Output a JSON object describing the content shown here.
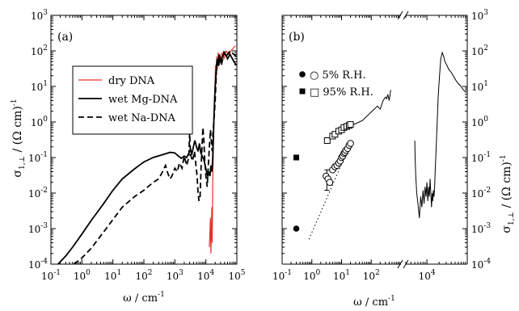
{
  "chart_data": [
    {
      "type": "line",
      "panel_label": "(a)",
      "xlabel": "ω / cm",
      "xlabel_sup": "-1",
      "ylabel": "σ",
      "ylabel_sub": "1,⊥",
      "ylabel_unit": " / (Ω cm)",
      "ylabel_sup": "-1",
      "xscale": "log",
      "yscale": "log",
      "xlim": [
        0.1,
        100000
      ],
      "ylim": [
        0.0001,
        1000
      ],
      "x_ticks": [
        {
          "base": "10",
          "exp": "-1",
          "v": 0.1
        },
        {
          "base": "10",
          "exp": "0",
          "v": 1
        },
        {
          "base": "10",
          "exp": "1",
          "v": 10
        },
        {
          "base": "10",
          "exp": "2",
          "v": 100
        },
        {
          "base": "10",
          "exp": "3",
          "v": 1000
        },
        {
          "base": "10",
          "exp": "4",
          "v": 10000
        },
        {
          "base": "10",
          "exp": "5",
          "v": 100000
        }
      ],
      "y_ticks": [
        {
          "base": "10",
          "exp": "-4",
          "v": 0.0001
        },
        {
          "base": "10",
          "exp": "-3",
          "v": 0.001
        },
        {
          "base": "10",
          "exp": "-2",
          "v": 0.01
        },
        {
          "base": "10",
          "exp": "-1",
          "v": 0.1
        },
        {
          "base": "10",
          "exp": "0",
          "v": 1
        },
        {
          "base": "10",
          "exp": "1",
          "v": 10
        },
        {
          "base": "10",
          "exp": "2",
          "v": 100
        },
        {
          "base": "10",
          "exp": "3",
          "v": 1000
        }
      ],
      "legend_position": "upper-left",
      "series": [
        {
          "name": "dry DNA",
          "color": "#e8322b",
          "style": "solid",
          "points": [
            [
              13000,
              0.0003
            ],
            [
              14000,
              0.002
            ],
            [
              14500,
              0.0002
            ],
            [
              15000,
              0.0008
            ],
            [
              15500,
              0.004
            ],
            [
              16000,
              0.0004
            ],
            [
              16800,
              0.03
            ],
            [
              17500,
              0.2
            ],
            [
              18500,
              2
            ],
            [
              19500,
              10
            ],
            [
              20500,
              40
            ],
            [
              21500,
              15
            ],
            [
              22500,
              70
            ],
            [
              23500,
              30
            ],
            [
              25000,
              90
            ],
            [
              26500,
              40
            ],
            [
              28000,
              80
            ],
            [
              30000,
              50
            ],
            [
              33000,
              90
            ],
            [
              38000,
              60
            ],
            [
              45000,
              100
            ],
            [
              55000,
              80
            ],
            [
              70000,
              110
            ],
            [
              90000,
              140
            ]
          ]
        },
        {
          "name": "wet Mg-DNA",
          "color": "#000000",
          "style": "solid",
          "points": [
            [
              0.17,
              0.0001
            ],
            [
              0.3,
              0.00017
            ],
            [
              0.5,
              0.0003
            ],
            [
              1,
              0.0007
            ],
            [
              2,
              0.0017
            ],
            [
              5,
              0.005
            ],
            [
              10,
              0.012
            ],
            [
              20,
              0.025
            ],
            [
              50,
              0.048
            ],
            [
              70,
              0.06
            ],
            [
              100,
              0.075
            ],
            [
              200,
              0.1
            ],
            [
              400,
              0.12
            ],
            [
              700,
              0.14
            ],
            [
              1000,
              0.135
            ],
            [
              1300,
              0.11
            ],
            [
              1600,
              0.095
            ],
            [
              2000,
              0.11
            ],
            [
              2400,
              0.1
            ],
            [
              2800,
              0.13
            ],
            [
              3200,
              0.17
            ],
            [
              3500,
              0.12
            ],
            [
              3900,
              0.19
            ],
            [
              4400,
              0.3
            ],
            [
              5000,
              0.2
            ],
            [
              5600,
              0.15
            ],
            [
              6200,
              0.25
            ],
            [
              6800,
              0.14
            ],
            [
              7600,
              0.11
            ],
            [
              8500,
              0.09
            ],
            [
              9500,
              0.06
            ],
            [
              10500,
              0.04
            ],
            [
              11500,
              0.03
            ],
            [
              12500,
              0.04
            ],
            [
              13500,
              0.03
            ],
            [
              14500,
              0.06
            ],
            [
              15500,
              0.04
            ],
            [
              16500,
              0.08
            ],
            [
              17500,
              0.4
            ],
            [
              18500,
              2
            ],
            [
              19500,
              6
            ],
            [
              21000,
              20
            ],
            [
              23000,
              60
            ],
            [
              25000,
              40
            ],
            [
              27000,
              80
            ],
            [
              30000,
              50
            ],
            [
              35000,
              70
            ],
            [
              40000,
              90
            ],
            [
              50000,
              60
            ],
            [
              60000,
              80
            ],
            [
              80000,
              50
            ],
            [
              95000,
              40
            ]
          ]
        },
        {
          "name": "wet Na-DNA",
          "color": "#000000",
          "style": "dashed",
          "points": [
            [
              0.55,
              0.0001
            ],
            [
              1,
              0.00015
            ],
            [
              2,
              0.00028
            ],
            [
              5,
              0.0008
            ],
            [
              10,
              0.0018
            ],
            [
              20,
              0.004
            ],
            [
              50,
              0.008
            ],
            [
              100,
              0.012
            ],
            [
              200,
              0.02
            ],
            [
              300,
              0.025
            ],
            [
              400,
              0.04
            ],
            [
              500,
              0.06
            ],
            [
              600,
              0.035
            ],
            [
              700,
              0.025
            ],
            [
              800,
              0.03
            ],
            [
              1000,
              0.05
            ],
            [
              1200,
              0.04
            ],
            [
              1400,
              0.07
            ],
            [
              1700,
              0.05
            ],
            [
              2000,
              0.11
            ],
            [
              2400,
              0.06
            ],
            [
              2800,
              0.1
            ],
            [
              3000,
              0.5
            ],
            [
              3200,
              0.12
            ],
            [
              3700,
              0.08
            ],
            [
              4300,
              0.15
            ],
            [
              4800,
              0.06
            ],
            [
              5200,
              0.03
            ],
            [
              5600,
              0.01
            ],
            [
              6000,
              0.006
            ],
            [
              6500,
              0.008
            ],
            [
              7000,
              0.05
            ],
            [
              7500,
              0.2
            ],
            [
              8000,
              0.7
            ],
            [
              8600,
              0.3
            ],
            [
              9200,
              0.08
            ],
            [
              10000,
              0.03
            ],
            [
              11000,
              0.015
            ],
            [
              12000,
              0.06
            ],
            [
              13000,
              0.2
            ],
            [
              14000,
              0.6
            ],
            [
              15000,
              0.3
            ],
            [
              16000,
              0.15
            ],
            [
              17000,
              0.5
            ],
            [
              18000,
              1
            ],
            [
              19000,
              2
            ],
            [
              20000,
              4
            ],
            [
              22000,
              30
            ],
            [
              24000,
              60
            ],
            [
              26000,
              35
            ],
            [
              28000,
              70
            ],
            [
              32000,
              40
            ],
            [
              38000,
              90
            ],
            [
              45000,
              70
            ],
            [
              60000,
              100
            ],
            [
              80000,
              80
            ],
            [
              95000,
              70
            ]
          ]
        }
      ]
    },
    {
      "type": "scatter",
      "panel_label": "(b)",
      "xlabel": "ω / cm",
      "xlabel_sup": "-1",
      "ylabel": "σ",
      "ylabel_sub": "1,⊥",
      "ylabel_unit": " / (Ω cm)",
      "ylabel_sup": "-1",
      "xscale": "log (broken axis)",
      "yscale": "log",
      "xlim_left_segment": [
        0.1,
        1000
      ],
      "xlim_right_segment": [
        3000,
        100000
      ],
      "ylim": [
        0.0001,
        1000
      ],
      "x_ticks": [
        {
          "base": "10",
          "exp": "-1",
          "v": 0.1
        },
        {
          "base": "10",
          "exp": "0",
          "v": 1
        },
        {
          "base": "10",
          "exp": "1",
          "v": 10
        },
        {
          "base": "10",
          "exp": "2",
          "v": 100
        },
        {
          "base": "10",
          "exp": "4",
          "v": 10000
        }
      ],
      "y_ticks": [
        {
          "base": "10",
          "exp": "-4",
          "v": 0.0001
        },
        {
          "base": "10",
          "exp": "-3",
          "v": 0.001
        },
        {
          "base": "10",
          "exp": "-2",
          "v": 0.01
        },
        {
          "base": "10",
          "exp": "-1",
          "v": 0.1
        },
        {
          "base": "10",
          "exp": "0",
          "v": 1
        },
        {
          "base": "10",
          "exp": "1",
          "v": 10
        },
        {
          "base": "10",
          "exp": "2",
          "v": 100
        },
        {
          "base": "10",
          "exp": "3",
          "v": 1000
        }
      ],
      "axis_break_mark": "//",
      "legend_position": "upper-left",
      "legend": [
        {
          "label": "○ 5% R.H.",
          "marker": "filled-circle"
        },
        {
          "label": "□ 95% R.H.",
          "marker": "filled-square"
        }
      ],
      "points_filled_circle": [
        [
          0.3,
          0.001
        ]
      ],
      "points_filled_square": [
        [
          0.3,
          0.1
        ]
      ],
      "points_open_circle": [
        [
          3,
          0.03
        ],
        [
          3.5,
          0.025
        ],
        [
          4,
          0.02
        ],
        [
          5,
          0.045
        ],
        [
          6,
          0.055
        ],
        [
          7,
          0.06
        ],
        [
          8,
          0.07
        ],
        [
          9,
          0.08
        ],
        [
          10,
          0.1
        ],
        [
          11,
          0.11
        ],
        [
          12,
          0.13
        ],
        [
          13,
          0.14
        ],
        [
          14,
          0.16
        ],
        [
          16,
          0.18
        ],
        [
          18,
          0.22
        ],
        [
          20,
          0.25
        ]
      ],
      "points_open_square": [
        [
          3.3,
          0.3
        ],
        [
          5,
          0.4
        ],
        [
          6,
          0.45
        ],
        [
          8,
          0.55
        ],
        [
          10,
          0.6
        ],
        [
          12,
          0.7
        ],
        [
          15,
          0.75
        ],
        [
          18,
          0.8
        ],
        [
          20,
          0.85
        ]
      ],
      "error_bar": {
        "x": 3.2,
        "low": 0.012,
        "high": 0.045
      },
      "dotted_line": [
        [
          0.8,
          0.0005
        ],
        [
          20,
          0.25
        ]
      ],
      "line_low_freq": [
        [
          20,
          0.8
        ],
        [
          30,
          0.9
        ],
        [
          50,
          1.1
        ],
        [
          80,
          1.6
        ],
        [
          120,
          2.2
        ],
        [
          160,
          2.8
        ],
        [
          200,
          2.3
        ],
        [
          250,
          4
        ],
        [
          300,
          5
        ],
        [
          330,
          4.5
        ],
        [
          360,
          6
        ],
        [
          400,
          4
        ],
        [
          450,
          8
        ]
      ],
      "line_high_freq": [
        [
          5000,
          0.3
        ],
        [
          5100,
          0.1
        ],
        [
          5300,
          0.03
        ],
        [
          5600,
          0.01
        ],
        [
          6000,
          0.005
        ],
        [
          6500,
          0.002
        ],
        [
          7000,
          0.008
        ],
        [
          7500,
          0.004
        ],
        [
          8000,
          0.012
        ],
        [
          8500,
          0.005
        ],
        [
          9000,
          0.015
        ],
        [
          9500,
          0.008
        ],
        [
          10000,
          0.02
        ],
        [
          10500,
          0.006
        ],
        [
          11000,
          0.015
        ],
        [
          11500,
          0.008
        ],
        [
          12000,
          0.025
        ],
        [
          12500,
          0.01
        ],
        [
          13000,
          0.004
        ],
        [
          13500,
          0.01
        ],
        [
          14000,
          0.006
        ],
        [
          14500,
          0.012
        ],
        [
          15000,
          0.008
        ],
        [
          15500,
          0.015
        ],
        [
          16000,
          0.04
        ],
        [
          17000,
          0.2
        ],
        [
          18000,
          1
        ],
        [
          19000,
          5
        ],
        [
          20500,
          20
        ],
        [
          22000,
          60
        ],
        [
          24000,
          90
        ],
        [
          26000,
          70
        ],
        [
          28000,
          50
        ],
        [
          31000,
          40
        ],
        [
          35000,
          30
        ],
        [
          40000,
          25
        ],
        [
          45000,
          20
        ],
        [
          52000,
          15
        ],
        [
          60000,
          12
        ],
        [
          70000,
          10
        ],
        [
          80000,
          8
        ],
        [
          90000,
          7
        ]
      ]
    }
  ]
}
